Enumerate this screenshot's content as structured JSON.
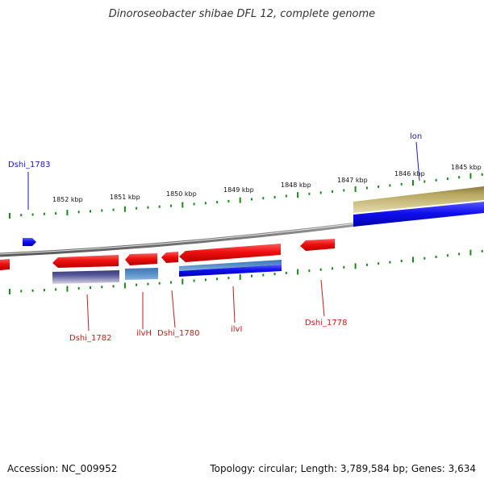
{
  "title": "Dinoroseobacter shibae DFL 12, complete genome",
  "footer": {
    "accession": "Accession: NC_009952",
    "info": "Topology: circular; Length: 3,789,584 bp; Genes: 3,634"
  },
  "colors": {
    "backbone": "#8a8a8a",
    "tick": "#1a8a1a",
    "forward_gene": "#1a1aee",
    "reverse_gene": "#ee1a1a",
    "forward_label": "#1a1ab8",
    "reverse_label": "#cc1a1a",
    "cds_reverse_dark": "#4a4a88",
    "cds_reverse_light": "#5a90c8",
    "cds_forward_olive": "#b8a860"
  },
  "kbp_labels": [
    "1852 kbp",
    "1851 kbp",
    "1850 kbp",
    "1849 kbp",
    "1848 kbp",
    "1847 kbp",
    "1846 kbp",
    "1845 kbp"
  ],
  "genes": [
    {
      "id": "Dshi_1783",
      "strand": "forward"
    },
    {
      "id": "lon",
      "strand": "forward"
    },
    {
      "id": "Dshi_1782",
      "strand": "reverse"
    },
    {
      "id": "ilvH",
      "strand": "reverse"
    },
    {
      "id": "Dshi_1780",
      "strand": "reverse"
    },
    {
      "id": "ilvI",
      "strand": "reverse"
    },
    {
      "id": "Dshi_1778",
      "strand": "reverse"
    }
  ]
}
